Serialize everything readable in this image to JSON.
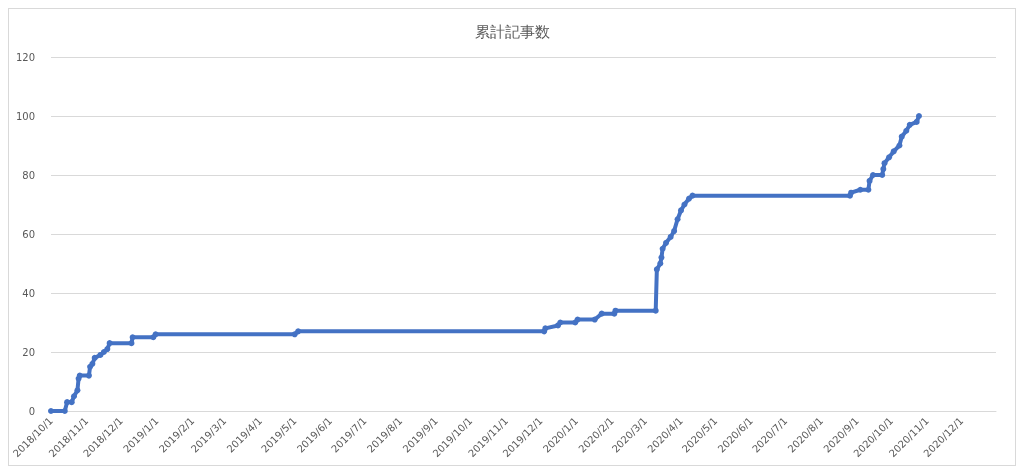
{
  "chart_data": {
    "type": "line",
    "title": "累計記事数",
    "x": [
      "2018-10-01",
      "2018-10-13",
      "2018-10-15",
      "2018-10-19",
      "2018-10-21",
      "2018-10-24",
      "2018-10-25",
      "2018-10-26",
      "2018-11-03",
      "2018-11-04",
      "2018-11-06",
      "2018-11-08",
      "2018-11-13",
      "2018-11-16",
      "2018-11-19",
      "2018-11-21",
      "2018-12-10",
      "2018-12-11",
      "2018-12-29",
      "2018-12-31",
      "2019-05-01",
      "2019-05-04",
      "2019-12-04",
      "2019-12-05",
      "2019-12-16",
      "2019-12-18",
      "2019-12-31",
      "2020-01-02",
      "2020-01-17",
      "2020-01-23",
      "2020-02-03",
      "2020-02-04",
      "2020-03-10",
      "2020-03-11",
      "2020-03-14",
      "2020-03-15",
      "2020-03-16",
      "2020-03-19",
      "2020-03-23",
      "2020-03-26",
      "2020-03-29",
      "2020-04-01",
      "2020-04-04",
      "2020-04-08",
      "2020-04-11",
      "2020-08-26",
      "2020-08-27",
      "2020-09-04",
      "2020-09-11",
      "2020-09-12",
      "2020-09-15",
      "2020-09-23",
      "2020-09-24",
      "2020-09-25",
      "2020-09-29",
      "2020-10-03",
      "2020-10-08",
      "2020-10-10",
      "2020-10-14",
      "2020-10-17",
      "2020-10-23",
      "2020-10-25"
    ],
    "series": [
      {
        "color": "#4472c4",
        "values": [
          0,
          0,
          3,
          3,
          5,
          7,
          11,
          12,
          12,
          15,
          16,
          18,
          19,
          20,
          21,
          23,
          23,
          25,
          25,
          26,
          26,
          27,
          27,
          28,
          29,
          30,
          30,
          31,
          31,
          33,
          33,
          34,
          34,
          48,
          50,
          52,
          55,
          57,
          59,
          61,
          65,
          68,
          70,
          72,
          73,
          73,
          74,
          75,
          75,
          78,
          80,
          80,
          82,
          84,
          86,
          88,
          90,
          93,
          95,
          97,
          98,
          100
        ]
      }
    ],
    "xlim": [
      "2018-10-01",
      "2020-12-31"
    ],
    "xticks": [
      {
        "value": "2018-10-01",
        "label": "2018/10/1"
      },
      {
        "value": "2018-11-01",
        "label": "2018/11/1"
      },
      {
        "value": "2018-12-01",
        "label": "2018/12/1"
      },
      {
        "value": "2019-01-01",
        "label": "2019/1/1"
      },
      {
        "value": "2019-02-01",
        "label": "2019/2/1"
      },
      {
        "value": "2019-03-01",
        "label": "2019/3/1"
      },
      {
        "value": "2019-04-01",
        "label": "2019/4/1"
      },
      {
        "value": "2019-05-01",
        "label": "2019/5/1"
      },
      {
        "value": "2019-06-01",
        "label": "2019/6/1"
      },
      {
        "value": "2019-07-01",
        "label": "2019/7/1"
      },
      {
        "value": "2019-08-01",
        "label": "2019/8/1"
      },
      {
        "value": "2019-09-01",
        "label": "2019/9/1"
      },
      {
        "value": "2019-10-01",
        "label": "2019/10/1"
      },
      {
        "value": "2019-11-01",
        "label": "2019/11/1"
      },
      {
        "value": "2019-12-01",
        "label": "2019/12/1"
      },
      {
        "value": "2020-01-01",
        "label": "2020/1/1"
      },
      {
        "value": "2020-02-01",
        "label": "2020/2/1"
      },
      {
        "value": "2020-03-01",
        "label": "2020/3/1"
      },
      {
        "value": "2020-04-01",
        "label": "2020/4/1"
      },
      {
        "value": "2020-05-01",
        "label": "2020/5/1"
      },
      {
        "value": "2020-06-01",
        "label": "2020/6/1"
      },
      {
        "value": "2020-07-01",
        "label": "2020/7/1"
      },
      {
        "value": "2020-08-01",
        "label": "2020/8/1"
      },
      {
        "value": "2020-09-01",
        "label": "2020/9/1"
      },
      {
        "value": "2020-10-01",
        "label": "2020/10/1"
      },
      {
        "value": "2020-11-01",
        "label": "2020/11/1"
      },
      {
        "value": "2020-12-01",
        "label": "2020/12/1"
      }
    ],
    "ylim": [
      0,
      120
    ],
    "yticks": [
      0,
      20,
      40,
      60,
      80,
      100,
      120
    ],
    "grid": "y",
    "marker": "circle",
    "line_style": "solid"
  }
}
